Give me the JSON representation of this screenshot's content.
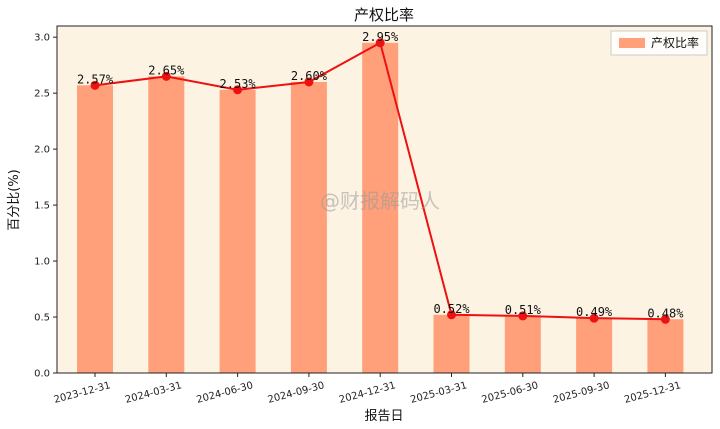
{
  "chart_data": {
    "type": "bar",
    "title": "产权比率",
    "xlabel": "报告日",
    "ylabel": "百分比(%)",
    "categories": [
      "2023-12-31",
      "2024-03-31",
      "2024-06-30",
      "2024-09-30",
      "2024-12-31",
      "2025-03-31",
      "2025-06-30",
      "2025-09-30",
      "2025-12-31"
    ],
    "series": [
      {
        "name": "产权比率",
        "type": "bar",
        "values": [
          2.57,
          2.65,
          2.53,
          2.6,
          2.95,
          0.52,
          0.51,
          0.49,
          0.48
        ]
      },
      {
        "type": "line",
        "values": [
          2.57,
          2.65,
          2.53,
          2.6,
          2.95,
          0.52,
          0.51,
          0.49,
          0.48
        ]
      }
    ],
    "data_labels": [
      "2.57%",
      "2.65%",
      "2.53%",
      "2.60%",
      "2.95%",
      "0.52%",
      "0.51%",
      "0.49%",
      "0.48%"
    ],
    "yticks": [
      "0.0",
      "0.5",
      "1.0",
      "1.5",
      "2.0",
      "2.5",
      "3.0"
    ],
    "ylim": [
      0,
      3.1
    ],
    "legend_position": "top-right",
    "grid": false,
    "colors": {
      "plot_bg": "#fdf3e3",
      "bar": "#ffa07a",
      "line": "#ee1111",
      "marker": "#ee1111"
    }
  },
  "watermark": "@财报解码人"
}
